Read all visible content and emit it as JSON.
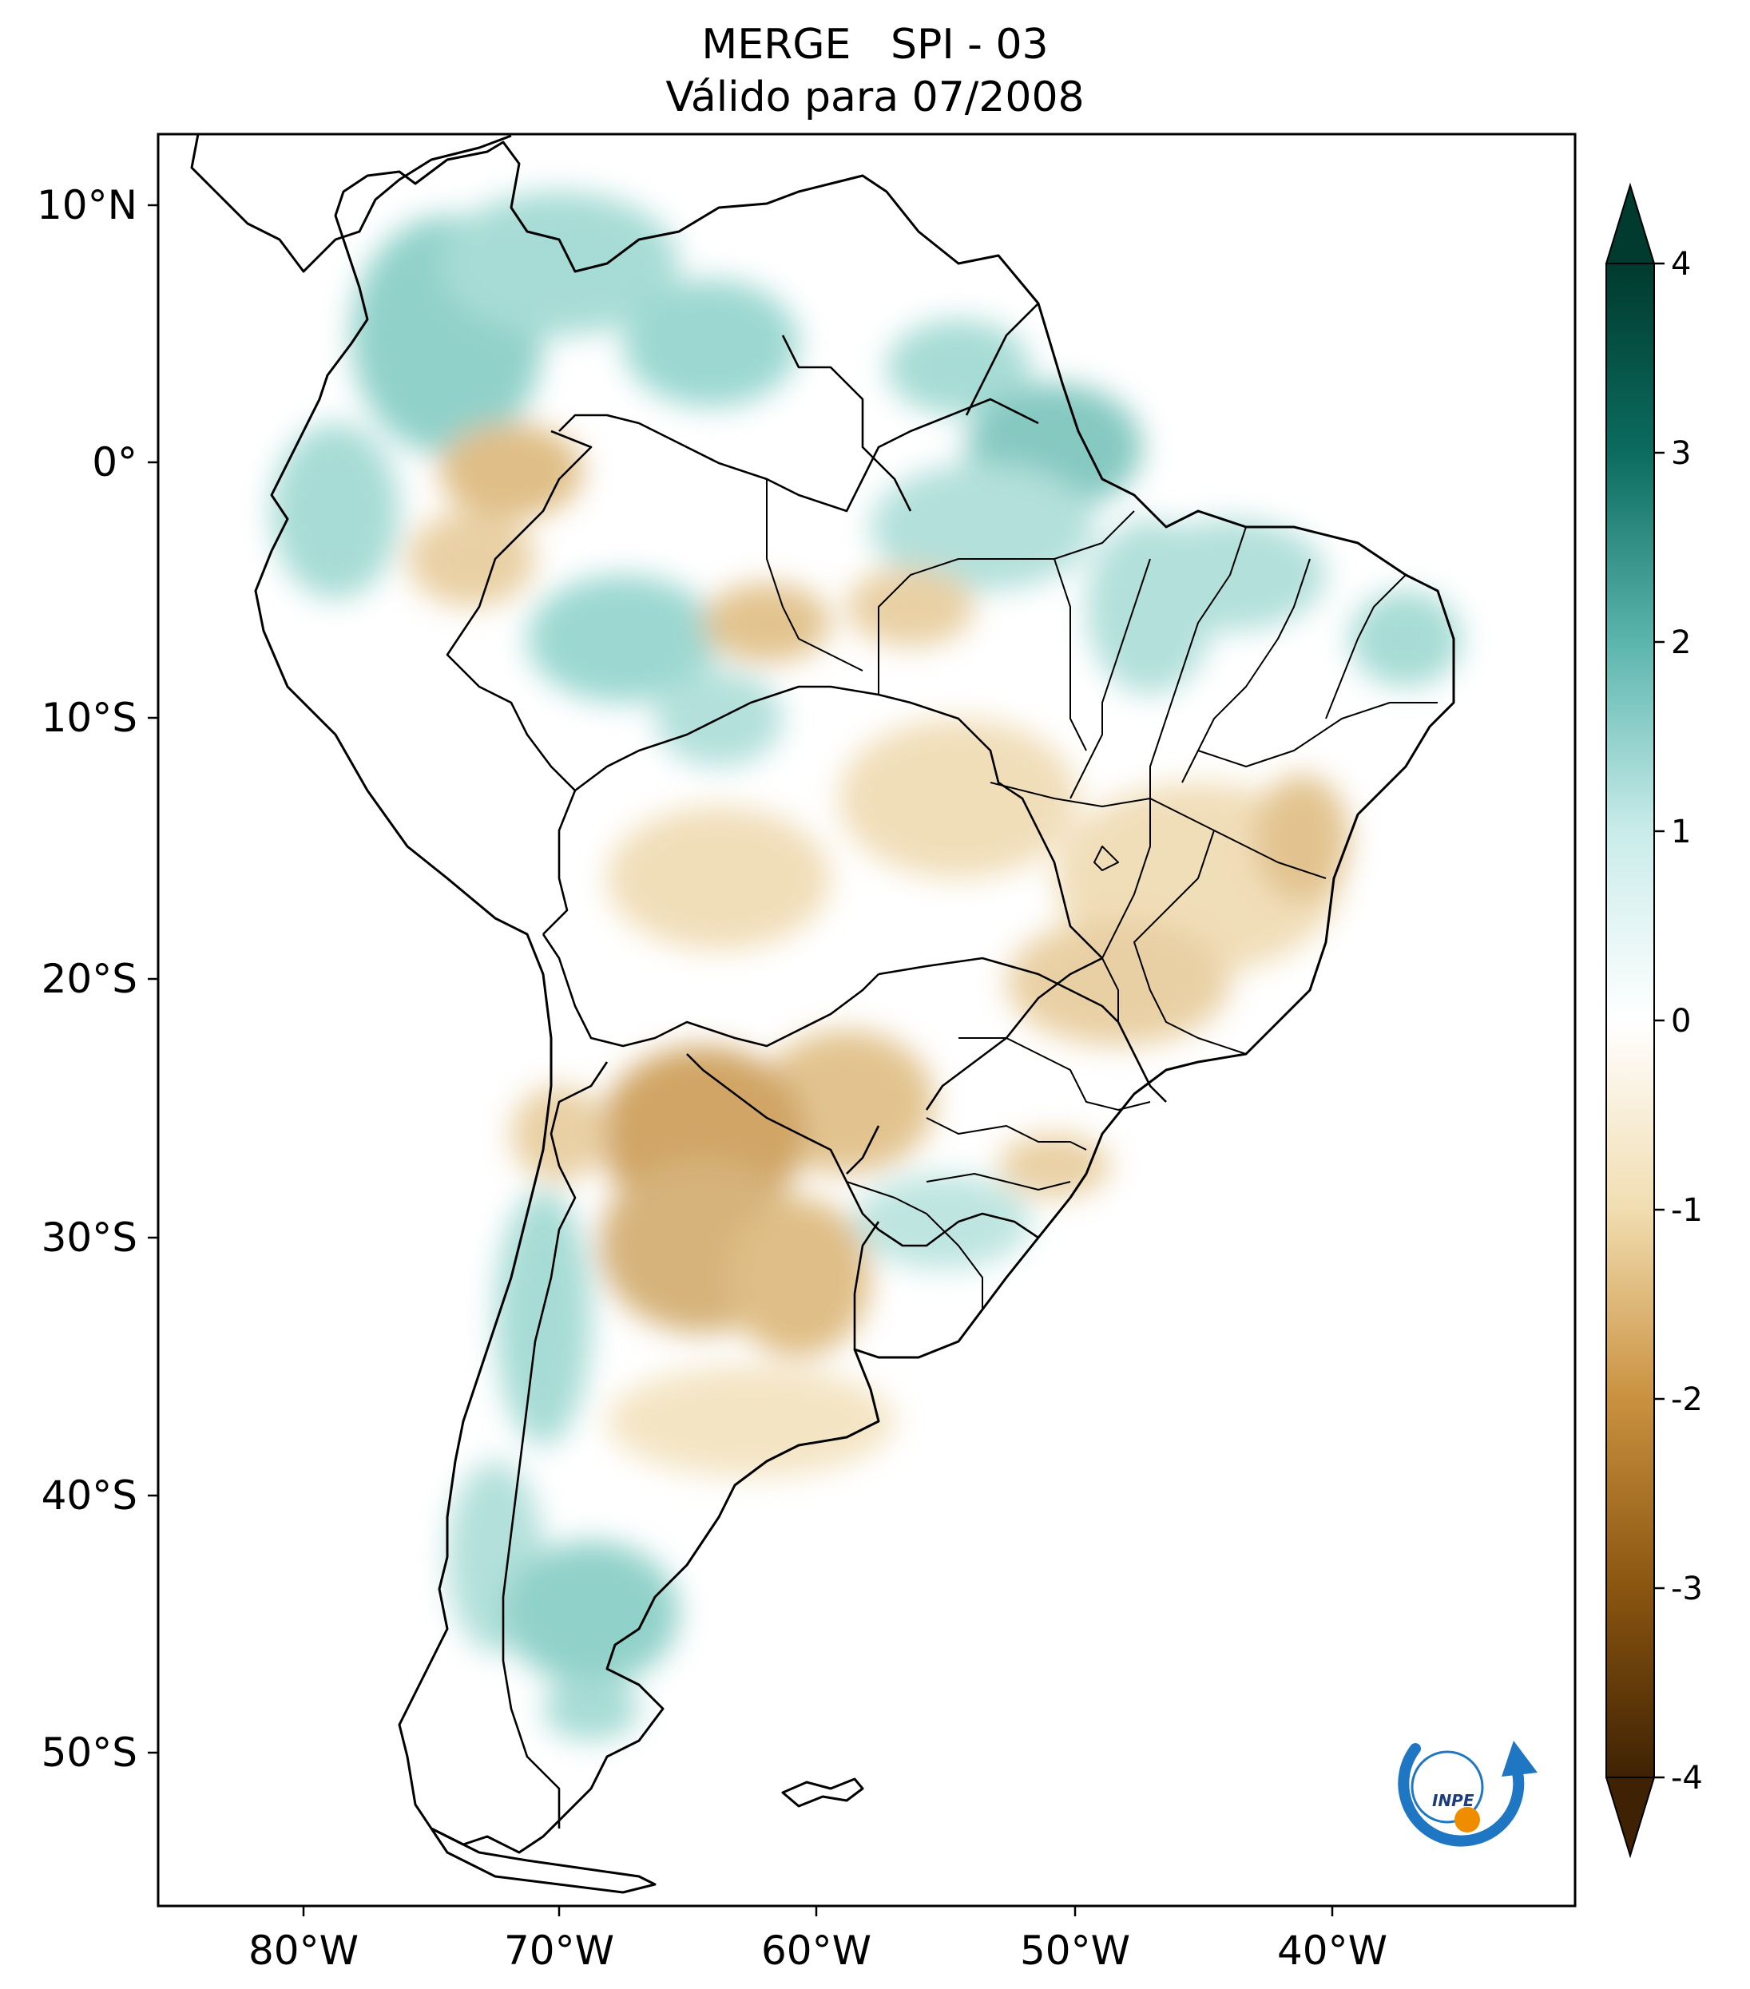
{
  "title": {
    "line1": "MERGE   SPI - 03",
    "line2": "Válido para 07/2008"
  },
  "map": {
    "lat_ticks": [
      "10°N",
      "0°",
      "10°S",
      "20°S",
      "30°S",
      "40°S",
      "50°S"
    ],
    "lon_ticks": [
      "80°W",
      "70°W",
      "60°W",
      "50°W",
      "40°W"
    ],
    "lat_range": [
      -56,
      13
    ],
    "lon_range": [
      -85,
      -30
    ]
  },
  "colorbar": {
    "ticks": [
      "4",
      "3",
      "2",
      "1",
      "0",
      "-1",
      "-2",
      "-3",
      "-4"
    ],
    "range": [
      -4,
      4
    ],
    "colormap": [
      "#3f2204",
      "#8a5510",
      "#c9913f",
      "#f1ddb0",
      "#ffffff",
      "#c9ecea",
      "#5bb5ad",
      "#0b6c5f",
      "#013a2e"
    ]
  },
  "logo": {
    "text": "INPE",
    "colors": {
      "arc": "#1f77c4",
      "dot": "#f08c00"
    }
  }
}
